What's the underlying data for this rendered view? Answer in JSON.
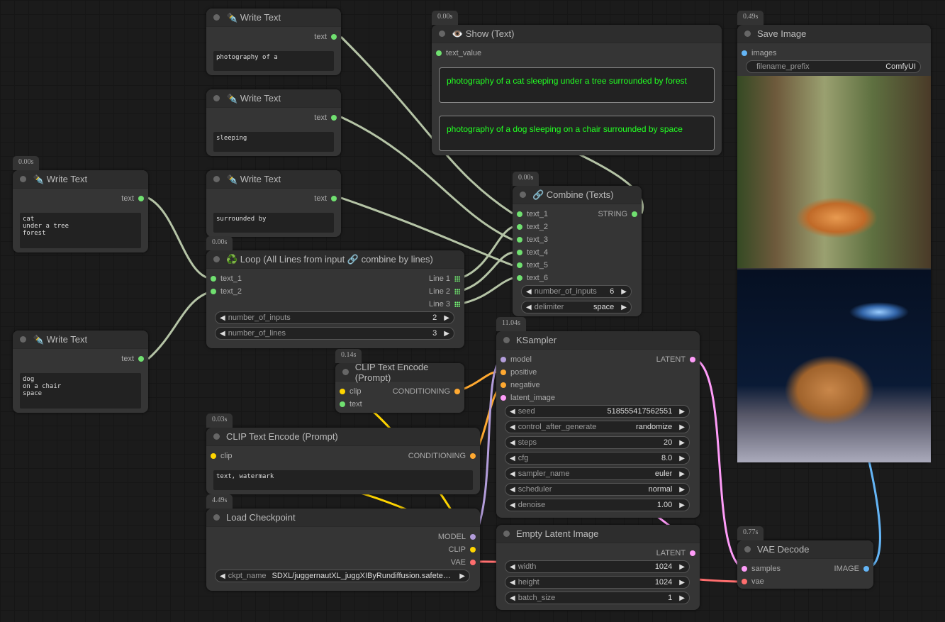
{
  "slot_colors": {
    "text": "#70e070",
    "MODEL": "#b39ddb",
    "CLIP": "#ffd500",
    "VAE": "#ff6e6e",
    "CONDITIONING": "#ffa931",
    "LATENT": "#ff9cf9",
    "IMAGE": "#64b5f6",
    "STRING": "#70e070"
  },
  "nodes": [
    {
      "id": "wt1",
      "title": "✒️ Write Text",
      "outputs": [
        {
          "label": "text",
          "type": "text"
        }
      ],
      "textarea": "photography of a"
    },
    {
      "id": "wt2",
      "title": "✒️ Write Text",
      "outputs": [
        {
          "label": "text",
          "type": "text"
        }
      ],
      "textarea": "sleeping"
    },
    {
      "id": "wt3",
      "title": "✒️ Write Text",
      "outputs": [
        {
          "label": "text",
          "type": "text"
        }
      ],
      "textarea": "surrounded by"
    },
    {
      "id": "wt4",
      "title": "✒️ Write Text",
      "timing": "0.00s",
      "outputs": [
        {
          "label": "text",
          "type": "text"
        }
      ],
      "textarea": "cat\nunder a tree\nforest"
    },
    {
      "id": "wt5",
      "title": "✒️ Write Text",
      "outputs": [
        {
          "label": "text",
          "type": "text"
        }
      ],
      "textarea": "dog\non a chair\nspace"
    },
    {
      "id": "show",
      "title": "👁️ Show (Text)",
      "timing": "0.00s",
      "inputs": [
        {
          "label": "text_value",
          "type": "text"
        }
      ],
      "show_texts": [
        "photography of a cat sleeping  under a tree surrounded by forest",
        "photography of a dog sleeping  on a chair surrounded by space"
      ]
    },
    {
      "id": "save",
      "title": "Save Image",
      "timing": "0.49s",
      "inputs": [
        {
          "label": "images",
          "type": "IMAGE"
        }
      ],
      "widgets": [
        {
          "label": "filename_prefix",
          "value": "ComfyUI",
          "plain": true
        }
      ],
      "images": [
        "cat sleeping under a tree",
        "dog sleeping on a chair in space"
      ]
    },
    {
      "id": "combine",
      "title": "🔗 Combine (Texts)",
      "timing": "0.00s",
      "inputs": [
        {
          "label": "text_1",
          "type": "text"
        },
        {
          "label": "text_2",
          "type": "text"
        },
        {
          "label": "text_3",
          "type": "text"
        },
        {
          "label": "text_4",
          "type": "text"
        },
        {
          "label": "text_5",
          "type": "text"
        },
        {
          "label": "text_6",
          "type": "text"
        }
      ],
      "outputs": [
        {
          "label": "STRING",
          "type": "STRING"
        }
      ],
      "widgets": [
        {
          "label": "number_of_inputs",
          "value": "6"
        },
        {
          "label": "delimiter",
          "value": "space"
        }
      ]
    },
    {
      "id": "loop",
      "title": "♻️ Loop (All Lines from input 🔗 combine by lines)",
      "timing": "0.00s",
      "inputs": [
        {
          "label": "text_1",
          "type": "text"
        },
        {
          "label": "text_2",
          "type": "text"
        }
      ],
      "outputs": [
        {
          "label": "Line 1",
          "type": "list"
        },
        {
          "label": "Line 2",
          "type": "list"
        },
        {
          "label": "Line 3",
          "type": "list"
        }
      ],
      "widgets": [
        {
          "label": "number_of_inputs",
          "value": "2"
        },
        {
          "label": "number_of_lines",
          "value": "3"
        }
      ]
    },
    {
      "id": "clip1",
      "title": "CLIP Text Encode (Prompt)",
      "timing": "0.14s",
      "inputs": [
        {
          "label": "clip",
          "type": "CLIP"
        },
        {
          "label": "text",
          "type": "text"
        }
      ],
      "outputs": [
        {
          "label": "CONDITIONING",
          "type": "CONDITIONING"
        }
      ]
    },
    {
      "id": "clip2",
      "title": "CLIP Text Encode (Prompt)",
      "timing": "0.03s",
      "inputs": [
        {
          "label": "clip",
          "type": "CLIP"
        }
      ],
      "outputs": [
        {
          "label": "CONDITIONING",
          "type": "CONDITIONING"
        }
      ],
      "textarea": "text, watermark"
    },
    {
      "id": "ksampler",
      "title": "KSampler",
      "timing": "11.04s",
      "inputs": [
        {
          "label": "model",
          "type": "MODEL"
        },
        {
          "label": "positive",
          "type": "CONDITIONING"
        },
        {
          "label": "negative",
          "type": "CONDITIONING"
        },
        {
          "label": "latent_image",
          "type": "LATENT"
        }
      ],
      "outputs": [
        {
          "label": "LATENT",
          "type": "LATENT"
        }
      ],
      "widgets": [
        {
          "label": "seed",
          "value": "518555417562551"
        },
        {
          "label": "control_after_generate",
          "value": "randomize"
        },
        {
          "label": "steps",
          "value": "20"
        },
        {
          "label": "cfg",
          "value": "8.0"
        },
        {
          "label": "sampler_name",
          "value": "euler"
        },
        {
          "label": "scheduler",
          "value": "normal"
        },
        {
          "label": "denoise",
          "value": "1.00"
        }
      ]
    },
    {
      "id": "load",
      "title": "Load Checkpoint",
      "timing": "4.49s",
      "outputs": [
        {
          "label": "MODEL",
          "type": "MODEL"
        },
        {
          "label": "CLIP",
          "type": "CLIP"
        },
        {
          "label": "VAE",
          "type": "VAE"
        }
      ],
      "widgets": [
        {
          "label": "ckpt_name",
          "value": "SDXL/juggernautXL_juggXIByRundiffusion.safete…",
          "left": true
        }
      ]
    },
    {
      "id": "empty",
      "title": "Empty Latent Image",
      "outputs": [
        {
          "label": "LATENT",
          "type": "LATENT"
        }
      ],
      "widgets": [
        {
          "label": "width",
          "value": "1024"
        },
        {
          "label": "height",
          "value": "1024"
        },
        {
          "label": "batch_size",
          "value": "1"
        }
      ]
    },
    {
      "id": "vae",
      "title": "VAE Decode",
      "timing": "0.77s",
      "inputs": [
        {
          "label": "samples",
          "type": "LATENT"
        },
        {
          "label": "vae",
          "type": "VAE"
        }
      ],
      "outputs": [
        {
          "label": "IMAGE",
          "type": "IMAGE"
        }
      ]
    }
  ]
}
